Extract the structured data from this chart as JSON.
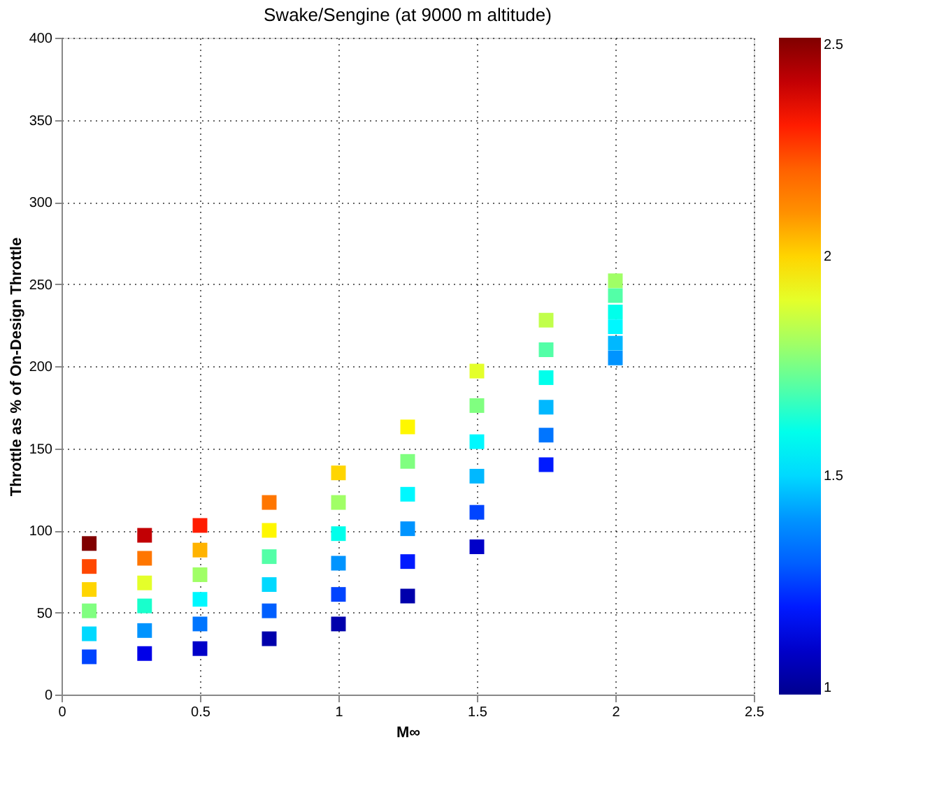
{
  "chart_data": {
    "type": "scatter",
    "title": "Swake/Sengine (at 9000 m altitude)",
    "xlabel": "M∞",
    "ylabel": "Throttle as % of On-Design Throttle",
    "x": [
      0.1,
      0.1,
      0.1,
      0.1,
      0.1,
      0.1,
      0.3,
      0.3,
      0.3,
      0.3,
      0.3,
      0.3,
      0.5,
      0.5,
      0.5,
      0.5,
      0.5,
      0.5,
      0.75,
      0.75,
      0.75,
      0.75,
      0.75,
      0.75,
      1.0,
      1.0,
      1.0,
      1.0,
      1.0,
      1.0,
      1.25,
      1.25,
      1.25,
      1.25,
      1.25,
      1.25,
      1.5,
      1.5,
      1.5,
      1.5,
      1.5,
      1.5,
      1.75,
      1.75,
      1.75,
      1.75,
      1.75,
      1.75,
      2.0,
      2.0,
      2.0,
      2.0,
      2.0,
      2.0
    ],
    "values": [
      23,
      37,
      51,
      64,
      78,
      92,
      25,
      39,
      54,
      68,
      83,
      97,
      28,
      43,
      58,
      73,
      88,
      103,
      34,
      51,
      67,
      84,
      100,
      117,
      43,
      61,
      80,
      98,
      117,
      135,
      60,
      81,
      101,
      122,
      142,
      163,
      90,
      111,
      133,
      154,
      176,
      197,
      140,
      158,
      175,
      193,
      210,
      228,
      205,
      214,
      224,
      233,
      243,
      252
    ],
    "cvalues": [
      1.25,
      1.5,
      1.75,
      2.0,
      2.25,
      2.5,
      1.15,
      1.4,
      1.65,
      1.9,
      2.15,
      2.4,
      1.1,
      1.35,
      1.55,
      1.8,
      2.05,
      2.3,
      1.05,
      1.3,
      1.5,
      1.7,
      1.95,
      2.15,
      1.05,
      1.25,
      1.4,
      1.6,
      1.8,
      2.0,
      1.05,
      1.2,
      1.4,
      1.55,
      1.75,
      1.95,
      1.1,
      1.25,
      1.45,
      1.55,
      1.75,
      1.9,
      1.2,
      1.35,
      1.45,
      1.6,
      1.7,
      1.85,
      1.4,
      1.45,
      1.55,
      1.6,
      1.7,
      1.8
    ],
    "marker": "square",
    "xlim": [
      0,
      2.5
    ],
    "xticks": [
      0,
      0.5,
      1,
      1.5,
      2,
      2.5
    ],
    "ylim": [
      0,
      400
    ],
    "yticks": [
      0,
      50,
      100,
      150,
      200,
      250,
      300,
      350,
      400
    ],
    "clim": [
      1,
      2.5
    ],
    "cticks": [
      1,
      1.5,
      2,
      2.5
    ],
    "grid": true
  }
}
